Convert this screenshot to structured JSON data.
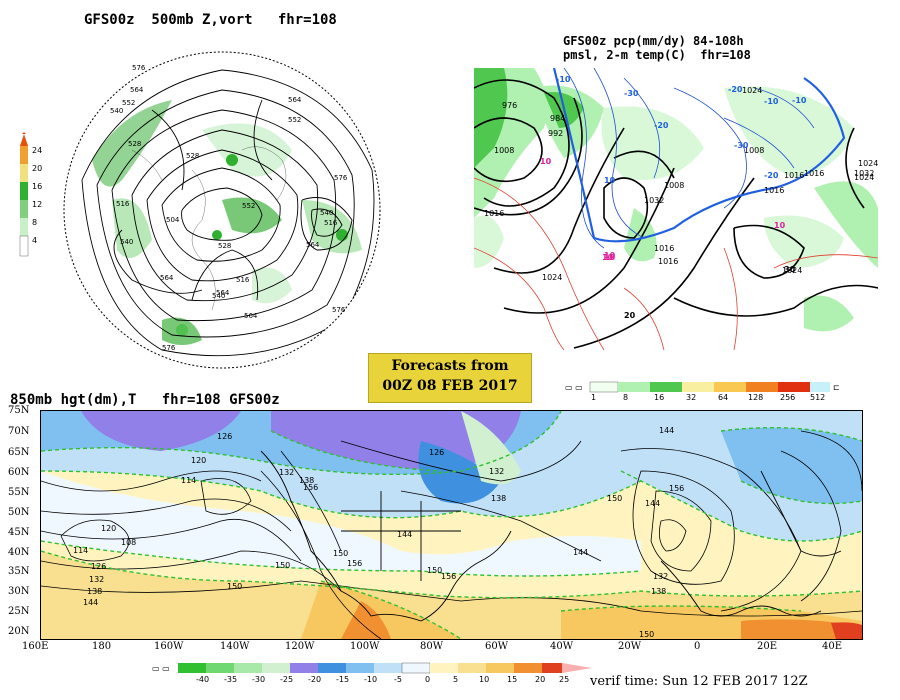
{
  "panels": {
    "vort": {
      "title": "GFS00z  500mb Z,vort   fhr=108",
      "contour_labels": [
        "576",
        "564",
        "552",
        "540",
        "528",
        "516",
        "504",
        "564",
        "552",
        "540",
        "516",
        "528",
        "564",
        "576",
        "564",
        "576",
        "552",
        "540",
        "564",
        "516",
        "528",
        "540",
        "564",
        "576"
      ],
      "colorbar": {
        "labels": [
          "24",
          "20",
          "16",
          "12",
          "8",
          "4"
        ],
        "colors": [
          "#e8500a",
          "#f0a030",
          "#f0e080",
          "#30b030",
          "#80d080",
          "#c8f0c8"
        ]
      }
    },
    "pcp": {
      "title_line1": "GFS00z pcp(mm/dy) 84-108h",
      "title_line2": "pmsl, 2-m temp(C)  fhr=108",
      "contour_labels": [
        "976",
        "984",
        "992",
        "1008",
        "1016",
        "1024",
        "1032",
        "1016",
        "1024",
        "1016",
        "1008",
        "1024",
        "1016",
        "1024",
        "1016",
        "1008",
        "1016",
        "1024",
        "1032"
      ],
      "temp_labels": [
        "-10",
        "10",
        "10",
        "-30",
        "-20",
        "10",
        "-10",
        "-20",
        "10",
        "-10",
        "-20",
        "-30",
        "30",
        "10",
        "10",
        "20"
      ],
      "colorbar": {
        "labels": [
          "1",
          "8",
          "16",
          "32",
          "64",
          "128",
          "256",
          "512"
        ],
        "colors": [
          "#f0fff0",
          "#b0f0b0",
          "#50c850",
          "#f8f0a0",
          "#f8c850",
          "#f08020",
          "#e03010",
          "#c8f0f8"
        ]
      }
    },
    "h850": {
      "title": "850mb hgt(dm),T   fhr=108 GFS00z",
      "lat_labels": [
        "75N",
        "70N",
        "65N",
        "60N",
        "55N",
        "50N",
        "45N",
        "40N",
        "35N",
        "30N",
        "25N",
        "20N"
      ],
      "lon_labels": [
        "160E",
        "180",
        "160W",
        "140W",
        "120W",
        "100W",
        "80W",
        "60W",
        "40W",
        "20W",
        "0",
        "20E",
        "40E"
      ],
      "height_labels": [
        "126",
        "120",
        "114",
        "132",
        "138",
        "150",
        "156",
        "126",
        "132",
        "138",
        "144",
        "150",
        "156",
        "144",
        "150",
        "156",
        "108",
        "114",
        "120",
        "126",
        "132",
        "138",
        "144",
        "150",
        "144",
        "144",
        "150",
        "156",
        "132",
        "138",
        "150"
      ],
      "colorbar": {
        "labels": [
          "-40",
          "-35",
          "-30",
          "-25",
          "-20",
          "-15",
          "-10",
          "-5",
          "0",
          "5",
          "10",
          "15",
          "20",
          "25"
        ],
        "colors": [
          "#30c030",
          "#70d870",
          "#a8e8a8",
          "#d0f0d0",
          "#9080e8",
          "#4090e0",
          "#80c0f0",
          "#c0e0f8",
          "#f0f8ff",
          "#fff4c0",
          "#f8e090",
          "#f8c860",
          "#f09030",
          "#e04020",
          "#f8b0b0"
        ]
      }
    }
  },
  "forecast_box": {
    "line1": "Forecasts from",
    "line2": "00Z 08 FEB 2017"
  },
  "verif_time": "verif time: Sun 12 FEB 2017 12Z",
  "colors": {
    "green_fill": "#78c878",
    "light_green": "#c8f0c8",
    "blue_cold": "#5090e0",
    "purple": "#a090f0",
    "warm_yellow": "#f8e090",
    "warm_orange": "#f0a040",
    "red": "#e04020",
    "contour_black": "#000000",
    "dashed_green": "#30c030"
  }
}
